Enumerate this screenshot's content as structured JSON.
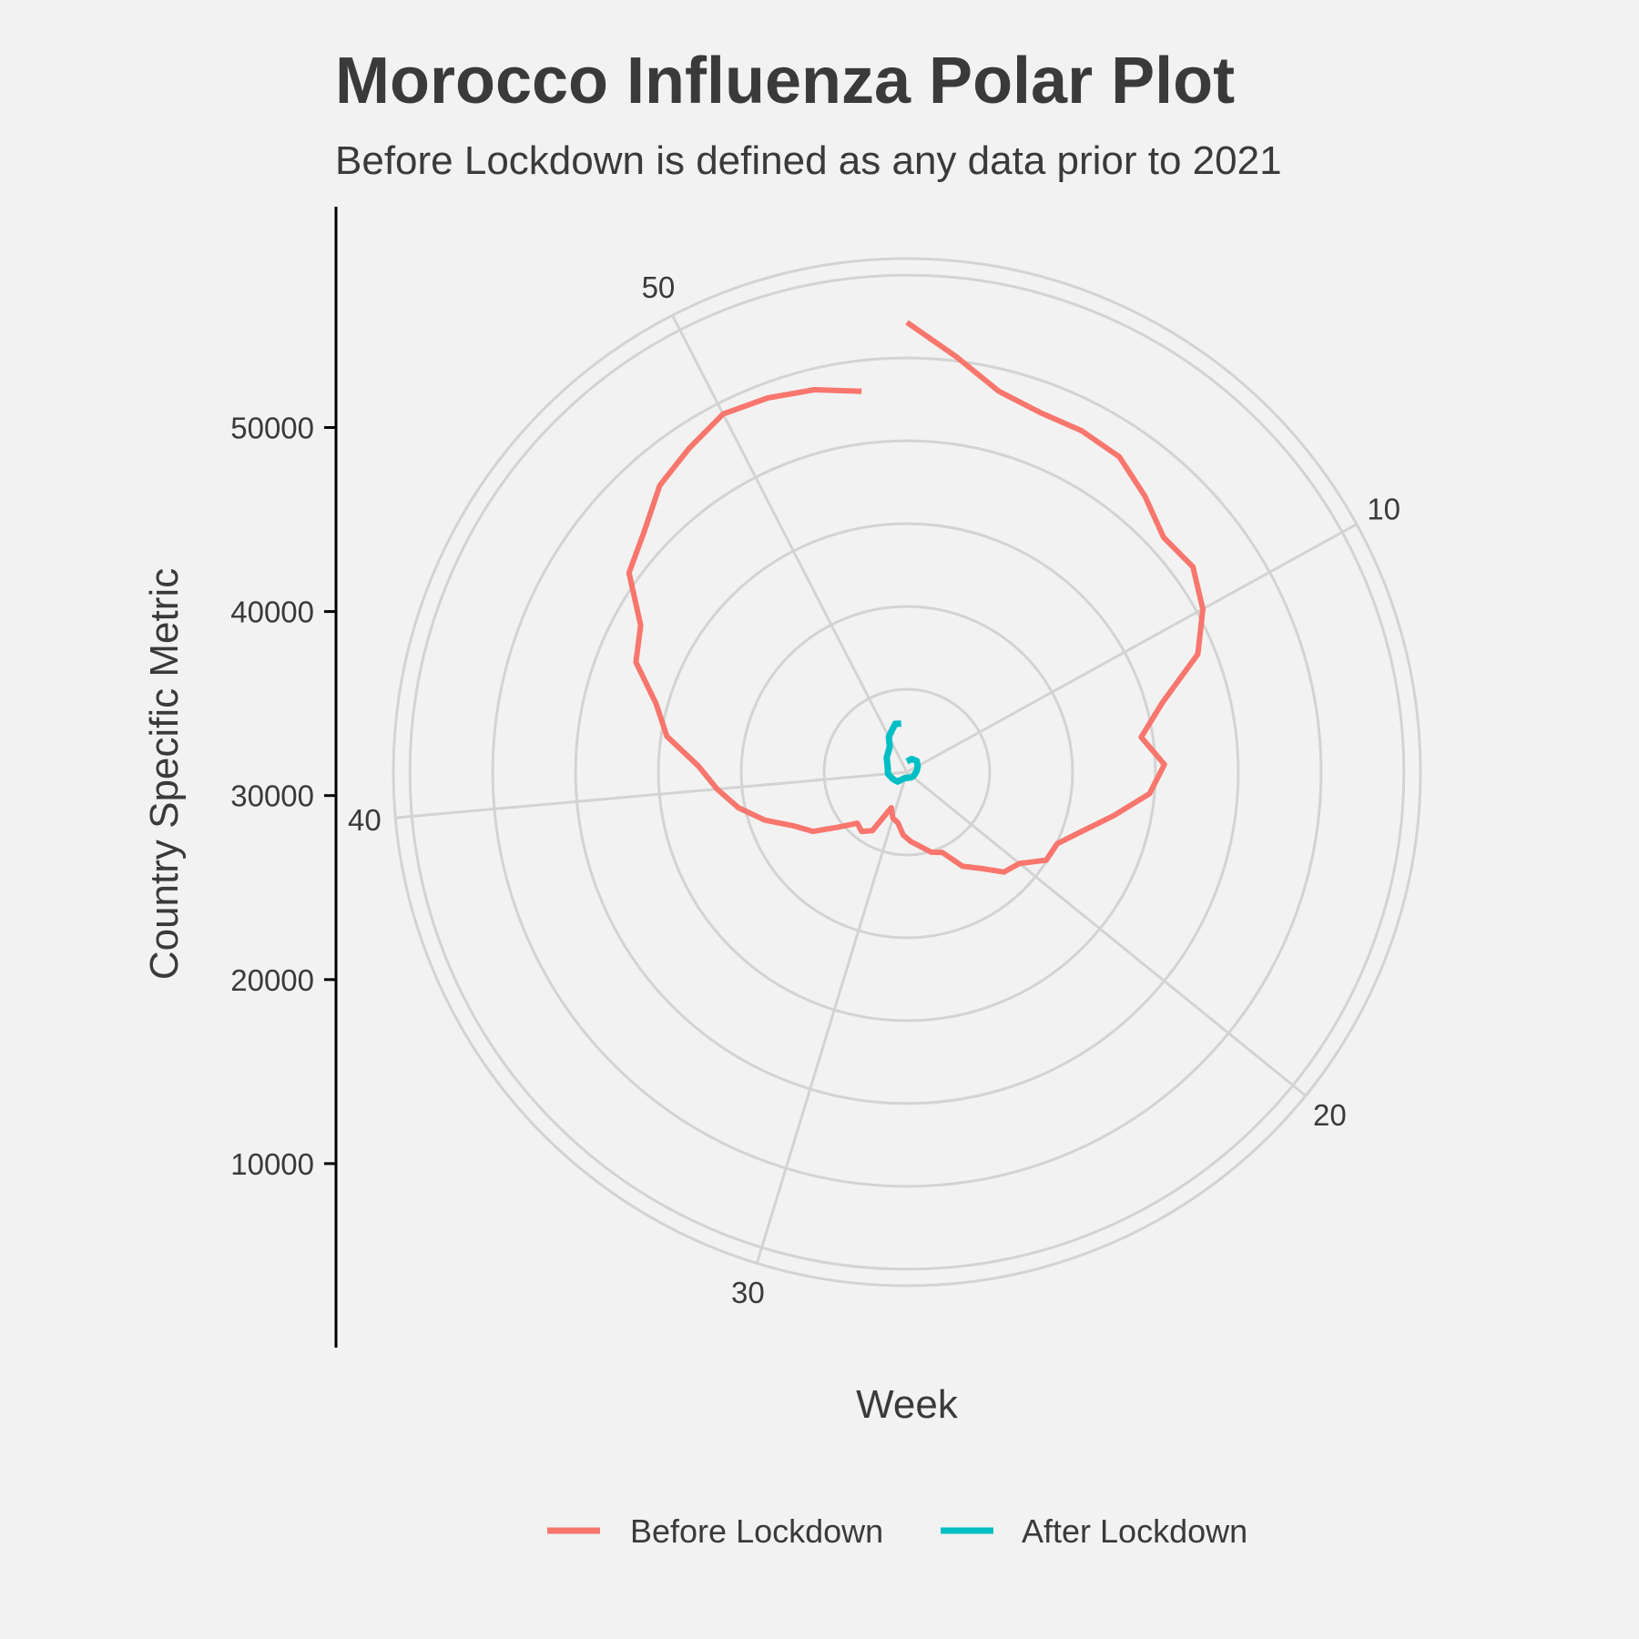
{
  "chart_data": {
    "type": "line",
    "coordinate_system": "polar",
    "title": "Morocco Influenza Polar Plot",
    "subtitle": "Before Lockdown is defined as any data prior to 2021",
    "xlabel": "Week",
    "ylabel": "Country Specific Metric",
    "x_range": [
      1,
      53
    ],
    "y_range": [
      0,
      62000
    ],
    "theta_ticks": [
      10,
      20,
      30,
      40,
      50
    ],
    "y_ticks": [
      10000,
      20000,
      30000,
      40000,
      50000
    ],
    "y_tick_labels": [
      "10000",
      "20000",
      "30000",
      "40000",
      "50000"
    ],
    "grid": true,
    "legend_position": "bottom",
    "series": [
      {
        "name": "Before Lockdown",
        "color": "#F8766D",
        "x": [
          1,
          2,
          3,
          4,
          5,
          6,
          7,
          8,
          9,
          10,
          11,
          12,
          13,
          14,
          15,
          16,
          17,
          18,
          19,
          20,
          21,
          22,
          23,
          24,
          25,
          26,
          27,
          28,
          29,
          30,
          31,
          32,
          33,
          34,
          35,
          36,
          37,
          38,
          39,
          40,
          41,
          42,
          43,
          44,
          45,
          46,
          47,
          48,
          49,
          50,
          51,
          52,
          53
        ],
        "y": [
          54300,
          50500,
          47300,
          46300,
          46300,
          45900,
          44000,
          42000,
          42500,
          40800,
          37900,
          32000,
          28600,
          31100,
          29400,
          25500,
          22300,
          20100,
          19900,
          17500,
          16800,
          14600,
          13200,
          10600,
          10100,
          9100,
          8400,
          7600,
          6200,
          5800,
          4700,
          8200,
          9000,
          8600,
          10500,
          13400,
          15100,
          18100,
          20800,
          23000,
          25200,
          29300,
          31400,
          35300,
          36700,
          41300,
          43000,
          45700,
          47100,
          48600,
          48200,
          47500,
          46300
        ]
      },
      {
        "name": "After Lockdown",
        "color": "#00BFC4",
        "x": [
          1,
          4,
          7,
          10,
          13,
          16,
          19,
          22,
          25,
          28,
          31,
          34,
          37,
          40,
          43,
          46,
          49,
          50,
          51,
          52,
          53
        ],
        "y": [
          1300,
          1700,
          1800,
          1500,
          1200,
          1000,
          900,
          800,
          700,
          700,
          800,
          1600,
          1900,
          2300,
          2400,
          3000,
          3700,
          4800,
          5300,
          6000,
          5900
        ]
      }
    ]
  }
}
